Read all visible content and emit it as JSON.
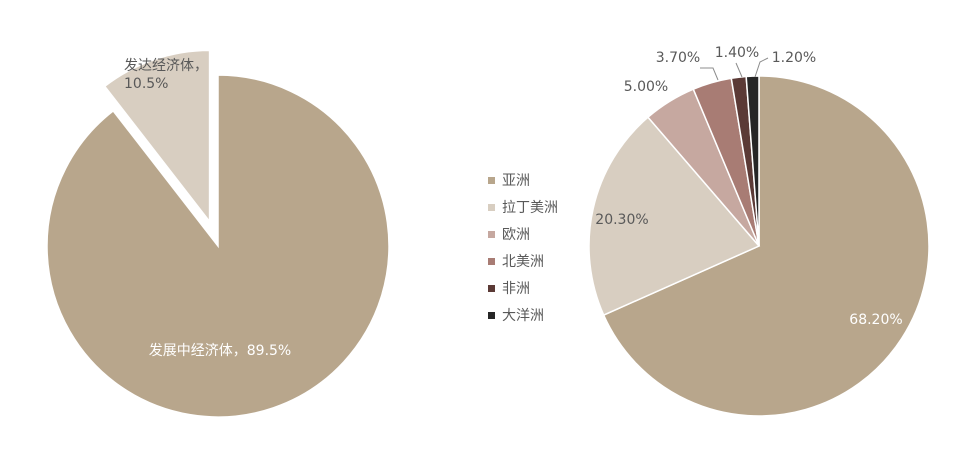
{
  "chart_data": [
    {
      "type": "pie",
      "slices": [
        {
          "name": "发展中经济体",
          "value": 89.5,
          "label": "发展中经济体，89.5%",
          "color": "#b8a68c"
        },
        {
          "name": "发达经济体",
          "value": 10.5,
          "label_line1": "发达经济体，",
          "label_line2": "10.5%",
          "color": "#d8cec1",
          "exploded": true
        }
      ],
      "legend": "none"
    },
    {
      "type": "pie",
      "slices": [
        {
          "name": "亚洲",
          "value": 68.2,
          "label": "68.20%",
          "color": "#b8a68c"
        },
        {
          "name": "拉丁美洲",
          "value": 20.3,
          "label": "20.30%",
          "color": "#d8cec1"
        },
        {
          "name": "欧洲",
          "value": 5.0,
          "label": "5.00%",
          "color": "#c6a8a0"
        },
        {
          "name": "北美洲",
          "value": 3.7,
          "label": "3.70%",
          "color": "#a87c74"
        },
        {
          "name": "非洲",
          "value": 1.4,
          "label": "1.40%",
          "color": "#5b3a36"
        },
        {
          "name": "大洋洲",
          "value": 1.2,
          "label": "1.20%",
          "color": "#262626"
        }
      ],
      "legend": "left"
    }
  ]
}
